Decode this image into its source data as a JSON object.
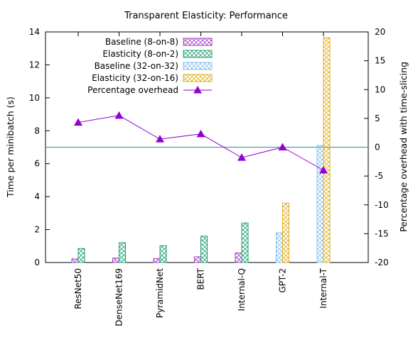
{
  "chart_data": {
    "type": "bar",
    "title": "Transparent Elasticity: Performance",
    "ylabel": "Time per minibatch (s)",
    "y2label": "Percentage overhead with time-slicing",
    "xlabel": "",
    "categories": [
      "ResNet50",
      "DenseNet169",
      "PyramidNet",
      "BERT",
      "Internal-Q",
      "GPT-2",
      "Internal-T"
    ],
    "ylim": [
      0,
      14
    ],
    "y2lim": [
      -20,
      20
    ],
    "yticks": [
      "0",
      "2",
      "4",
      "6",
      "8",
      "10",
      "12",
      "14"
    ],
    "y2ticks": [
      "-20",
      "-15",
      "-10",
      "-5",
      "0",
      "5",
      "10",
      "15",
      "20"
    ],
    "series": [
      {
        "name": "Baseline (8-on-8)",
        "axis": "left",
        "color": "#a040c0",
        "pattern": "cross",
        "values": [
          0.22,
          0.27,
          0.24,
          0.35,
          0.58,
          null,
          null
        ]
      },
      {
        "name": "Elasticity (8-on-2)",
        "axis": "left",
        "color": "#20a070",
        "pattern": "cross",
        "values": [
          0.85,
          1.2,
          1.02,
          1.6,
          2.4,
          null,
          null
        ]
      },
      {
        "name": "Baseline (32-on-32)",
        "axis": "left",
        "color": "#80c0f0",
        "pattern": "cross",
        "values": [
          null,
          null,
          null,
          null,
          null,
          1.8,
          7.1
        ]
      },
      {
        "name": "Elasticity (32-on-16)",
        "axis": "left",
        "color": "#e0b020",
        "pattern": "cross",
        "values": [
          null,
          null,
          null,
          null,
          null,
          3.6,
          13.65
        ]
      },
      {
        "name": "Percentage overhead",
        "axis": "right",
        "type": "line",
        "color": "#9400d3",
        "marker": "triangle",
        "values": [
          4.3,
          5.5,
          1.4,
          2.3,
          -1.8,
          0.0,
          -4.0
        ]
      }
    ],
    "reference_line": {
      "axis": "right",
      "value": 0,
      "color": "#4aa3a3"
    },
    "legend_position": "top-left",
    "grid": false
  }
}
